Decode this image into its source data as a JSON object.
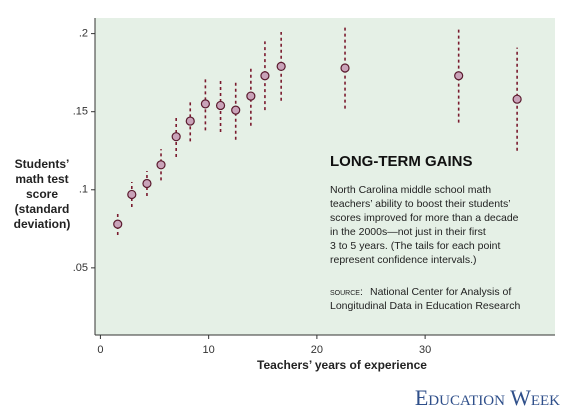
{
  "chart_data": {
    "type": "scatter",
    "title": "LONG-TERM GAINS",
    "description": [
      "North Carolina middle school math",
      "teachers’ ability to boost their students’",
      "scores improved for more than a decade",
      "in the 2000s—not just in their first",
      "3 to 5 years. (The tails for each point",
      "represent confidence intervals.)"
    ],
    "source_label": "source:",
    "source": [
      "National Center for Analysis of",
      "Longitudinal Data in Education Research"
    ],
    "x_label": "Teachers’ years of experience",
    "y_label": [
      "Students’",
      "math test",
      "score",
      "(standard",
      "deviation)"
    ],
    "publisher": "Education Week",
    "x": [
      1.6,
      2.9,
      4.3,
      5.6,
      7.0,
      8.3,
      9.7,
      11.1,
      12.5,
      13.9,
      15.2,
      16.7,
      22.6,
      33.1,
      38.5
    ],
    "values": [
      0.078,
      0.097,
      0.104,
      0.116,
      0.134,
      0.144,
      0.155,
      0.154,
      0.151,
      0.16,
      0.173,
      0.179,
      0.178,
      0.173,
      0.158
    ],
    "errors": [
      0.007,
      0.008,
      0.008,
      0.01,
      0.013,
      0.013,
      0.017,
      0.017,
      0.019,
      0.019,
      0.022,
      0.022,
      0.026,
      0.03,
      0.033
    ],
    "color": "#c9a3b9",
    "error_color": "#7a1a2e",
    "xlim": [
      -0.5,
      42
    ],
    "ylim": [
      0.007,
      0.21
    ],
    "xticks": [
      0,
      10,
      20,
      30
    ],
    "yticks": [
      {
        "value": 0.2,
        "label": ".2"
      },
      {
        "value": 0.15,
        "label": ".15"
      },
      {
        "value": 0.1,
        "label": ".1"
      },
      {
        "value": 0.05,
        "label": ".05"
      }
    ]
  }
}
